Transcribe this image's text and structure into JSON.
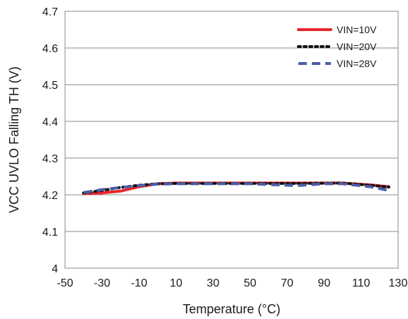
{
  "chart_data": {
    "type": "line",
    "title": "",
    "xlabel": "Temperature (°C)",
    "ylabel": "VCC UVLO Falling TH (V)",
    "xlim": [
      -50,
      130
    ],
    "ylim": [
      4.0,
      4.7
    ],
    "xticks": [
      -50,
      -30,
      -10,
      10,
      30,
      50,
      70,
      90,
      110,
      130
    ],
    "yticks": [
      4,
      4.1,
      4.2,
      4.3,
      4.4,
      4.5,
      4.6,
      4.7
    ],
    "xtick_labels": [
      "-50",
      "-30",
      "-10",
      "10",
      "30",
      "50",
      "70",
      "90",
      "110",
      "130"
    ],
    "ytick_labels": [
      "4",
      "4.1",
      "4.2",
      "4.3",
      "4.4",
      "4.5",
      "4.6",
      "4.7"
    ],
    "grid": "horizontal",
    "legend_position": "top-right",
    "series": [
      {
        "name": "VIN=10V",
        "color": "#e8262b",
        "style": "solid",
        "x": [
          -40,
          -30,
          -20,
          -10,
          0,
          10,
          25,
          50,
          75,
          100,
          115,
          125
        ],
        "y": [
          4.203,
          4.205,
          4.21,
          4.222,
          4.23,
          4.232,
          4.232,
          4.232,
          4.232,
          4.232,
          4.227,
          4.222
        ]
      },
      {
        "name": "VIN=20V",
        "color": "#111111",
        "style": "dotted",
        "x": [
          -40,
          -30,
          -20,
          -10,
          0,
          10,
          25,
          50,
          75,
          100,
          115,
          125
        ],
        "y": [
          4.205,
          4.212,
          4.22,
          4.226,
          4.23,
          4.231,
          4.231,
          4.231,
          4.231,
          4.232,
          4.226,
          4.221
        ]
      },
      {
        "name": "VIN=28V",
        "color": "#4a5ea8",
        "style": "dashed",
        "x": [
          -40,
          -30,
          -20,
          -10,
          0,
          10,
          25,
          50,
          75,
          90,
          100,
          115,
          125
        ],
        "y": [
          4.206,
          4.214,
          4.22,
          4.225,
          4.229,
          4.23,
          4.23,
          4.23,
          4.225,
          4.23,
          4.23,
          4.222,
          4.212
        ]
      }
    ]
  }
}
